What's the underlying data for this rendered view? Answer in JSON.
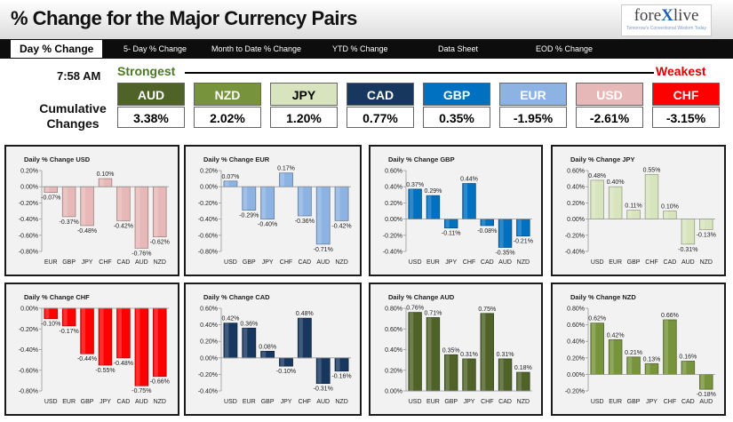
{
  "header": {
    "title": "% Change for the Major Currency Pairs",
    "logo_text_a": "fore",
    "logo_text_x": "X",
    "logo_text_b": "live",
    "logo_tagline": "Tomorrow's Conventional Wisdom Today"
  },
  "nav": [
    {
      "label": "Day % Change",
      "active": true
    },
    {
      "label": "5- Day % Change"
    },
    {
      "label": "Month to Date % Change"
    },
    {
      "label": "YTD % Change"
    },
    {
      "label": "Data Sheet"
    },
    {
      "label": "EOD % Change"
    }
  ],
  "summary": {
    "time": "7:58 AM",
    "strongest": "Strongest",
    "weakest": "Weakest",
    "row_label_1": "Cumulative",
    "row_label_2": "Changes",
    "currencies": [
      {
        "code": "AUD",
        "value": "3.38%",
        "bg": "#4f6228",
        "fg": "#ffffff"
      },
      {
        "code": "NZD",
        "value": "2.02%",
        "bg": "#77933c",
        "fg": "#ffffff"
      },
      {
        "code": "JPY",
        "value": "1.20%",
        "bg": "#d7e4bd",
        "fg": "#000000"
      },
      {
        "code": "CAD",
        "value": "0.77%",
        "bg": "#17375e",
        "fg": "#ffffff"
      },
      {
        "code": "GBP",
        "value": "0.35%",
        "bg": "#0070c0",
        "fg": "#ffffff"
      },
      {
        "code": "EUR",
        "value": "-1.95%",
        "bg": "#8db3e2",
        "fg": "#ffffff"
      },
      {
        "code": "USD",
        "value": "-2.61%",
        "bg": "#e6b9b8",
        "fg": "#ffffff"
      },
      {
        "code": "CHF",
        "value": "-3.15%",
        "bg": "#ff0000",
        "fg": "#ffffff"
      }
    ]
  },
  "chart_data": [
    {
      "type": "bar",
      "title": "Daily % Change USD",
      "color": "#e6b9b8",
      "categories": [
        "EUR",
        "GBP",
        "JPY",
        "CHF",
        "CAD",
        "AUD",
        "NZD"
      ],
      "values": [
        -0.07,
        -0.37,
        -0.48,
        0.1,
        -0.42,
        -0.76,
        -0.62
      ],
      "ylim": [
        -0.8,
        0.2
      ],
      "ticks": [
        "0.20%",
        "0.00%",
        "-0.20%",
        "-0.40%",
        "-0.60%",
        "-0.80%"
      ],
      "labels": [
        "-0.07%",
        "-0.37%",
        "-0.48%",
        "0.10%",
        "-0.42%",
        "-0.76%",
        "-0.62%"
      ]
    },
    {
      "type": "bar",
      "title": "Daily % Change EUR",
      "color": "#8db3e2",
      "categories": [
        "USD",
        "GBP",
        "JPY",
        "CHF",
        "CAD",
        "AUD",
        "NZD"
      ],
      "values": [
        0.07,
        -0.29,
        -0.4,
        0.17,
        -0.36,
        -0.71,
        -0.42
      ],
      "ylim": [
        -0.8,
        0.2
      ],
      "ticks": [
        "0.20%",
        "0.00%",
        "-0.20%",
        "-0.40%",
        "-0.60%",
        "-0.80%"
      ],
      "labels": [
        "0.07%",
        "-0.29%",
        "-0.40%",
        "0.17%",
        "-0.36%",
        "-0.71%",
        "-0.42%"
      ]
    },
    {
      "type": "bar",
      "title": "Daily % Change GBP",
      "color": "#0070c0",
      "categories": [
        "USD",
        "EUR",
        "JPY",
        "CHF",
        "CAD",
        "AUD",
        "NZD"
      ],
      "values": [
        0.37,
        0.29,
        -0.11,
        0.44,
        -0.08,
        -0.35,
        -0.21
      ],
      "ylim": [
        -0.4,
        0.6
      ],
      "ticks": [
        "0.60%",
        "0.40%",
        "0.20%",
        "0.00%",
        "-0.20%",
        "-0.40%"
      ],
      "labels": [
        "0.37%",
        "0.29%",
        "-0.11%",
        "0.44%",
        "-0.08%",
        "-0.35%",
        "-0.21%"
      ]
    },
    {
      "type": "bar",
      "title": "Daily % Change JPY",
      "color": "#d7e4bd",
      "categories": [
        "USD",
        "EUR",
        "GBP",
        "CHF",
        "CAD",
        "AUD",
        "NZD"
      ],
      "values": [
        0.48,
        0.4,
        0.11,
        0.55,
        0.1,
        -0.31,
        -0.13
      ],
      "ylim": [
        -0.4,
        0.6
      ],
      "ticks": [
        "0.60%",
        "0.40%",
        "0.20%",
        "0.00%",
        "-0.20%",
        "-0.40%"
      ],
      "labels": [
        "0.48%",
        "0.40%",
        "0.11%",
        "0.55%",
        "0.10%",
        "-0.31%",
        "-0.13%"
      ]
    },
    {
      "type": "bar",
      "title": "Daily % Change CHF",
      "color": "#ff0000",
      "categories": [
        "USD",
        "EUR",
        "GBP",
        "JPY",
        "CAD",
        "AUD",
        "NZD"
      ],
      "values": [
        -0.1,
        -0.17,
        -0.44,
        -0.55,
        -0.48,
        -0.75,
        -0.66
      ],
      "ylim": [
        -0.8,
        0.0
      ],
      "ticks": [
        "0.00%",
        "-0.20%",
        "-0.40%",
        "-0.60%",
        "-0.80%"
      ],
      "labels": [
        "-0.10%",
        "-0.17%",
        "-0.44%",
        "-0.55%",
        "-0.48%",
        "-0.75%",
        "-0.66%"
      ]
    },
    {
      "type": "bar",
      "title": "Daily % Change CAD",
      "color": "#17375e",
      "categories": [
        "USD",
        "EUR",
        "GBP",
        "JPY",
        "CHF",
        "AUD",
        "NZD"
      ],
      "values": [
        0.42,
        0.36,
        0.08,
        -0.1,
        0.48,
        -0.31,
        -0.16
      ],
      "ylim": [
        -0.4,
        0.6
      ],
      "ticks": [
        "0.60%",
        "0.40%",
        "0.20%",
        "0.00%",
        "-0.20%",
        "-0.40%"
      ],
      "labels": [
        "0.42%",
        "0.36%",
        "0.08%",
        "-0.10%",
        "0.48%",
        "-0.31%",
        "-0.16%"
      ]
    },
    {
      "type": "bar",
      "title": "Daily % Change AUD",
      "color": "#4f6228",
      "categories": [
        "USD",
        "EUR",
        "GBP",
        "JPY",
        "CHF",
        "CAD",
        "NZD"
      ],
      "values": [
        0.76,
        0.71,
        0.35,
        0.31,
        0.75,
        0.31,
        0.18
      ],
      "ylim": [
        0.0,
        0.8
      ],
      "ticks": [
        "0.80%",
        "0.60%",
        "0.40%",
        "0.20%",
        "0.00%"
      ],
      "labels": [
        "0.76%",
        "0.71%",
        "0.35%",
        "0.31%",
        "0.75%",
        "0.31%",
        "0.18%"
      ]
    },
    {
      "type": "bar",
      "title": "Daily % Change NZD",
      "color": "#77933c",
      "categories": [
        "USD",
        "EUR",
        "GBP",
        "JPY",
        "CHF",
        "CAD",
        "AUD"
      ],
      "values": [
        0.62,
        0.42,
        0.21,
        0.13,
        0.66,
        0.16,
        -0.18
      ],
      "ylim": [
        -0.2,
        0.8
      ],
      "ticks": [
        "0.80%",
        "0.60%",
        "0.40%",
        "0.20%",
        "0.00%",
        "-0.20%"
      ],
      "labels": [
        "0.62%",
        "0.42%",
        "0.21%",
        "0.13%",
        "0.66%",
        "0.16%",
        "-0.18%"
      ]
    }
  ]
}
